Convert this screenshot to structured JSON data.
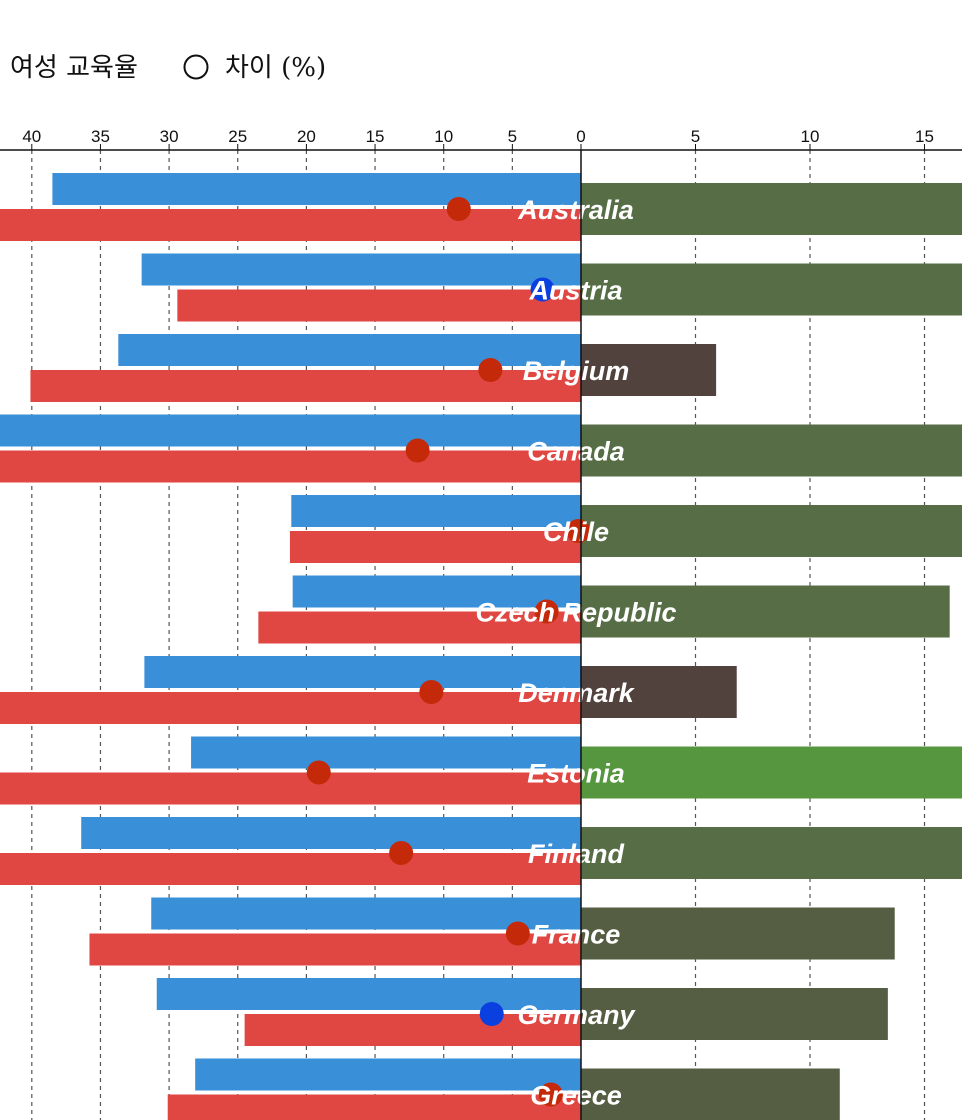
{
  "legend": {
    "series_label": "여성 교육율",
    "marker_label": "차이 (%)"
  },
  "chart_data": {
    "type": "bar",
    "left_axis": {
      "ticks": [
        40,
        35,
        30,
        25,
        20,
        15,
        10,
        5,
        0
      ],
      "direction": "increasing-leftward"
    },
    "right_axis": {
      "ticks": [
        0,
        5,
        10,
        15
      ],
      "direction": "increasing-rightward"
    },
    "grid": "vertical dashed",
    "colors": {
      "blue_bar": "#3a8fd9",
      "red_bar": "#e04742",
      "dot_red": "#c42a0a",
      "dot_blue": "#0a3fe0",
      "green_dark": "#566d45",
      "green_bright": "#55963f",
      "brown": "#51423e",
      "olive": "#555e42"
    },
    "categories": [
      "Australia",
      "Austria",
      "Belgium",
      "Canada",
      "Chile",
      "Czech Republic",
      "Denmark",
      "Estonia",
      "Finland",
      "France",
      "Germany",
      "Greece"
    ],
    "series": [
      {
        "values": [
          38.5,
          32.0,
          33.7,
          44.0,
          21.1,
          21.0,
          31.8,
          28.4,
          36.4,
          31.3,
          30.9,
          28.1
        ]
      },
      {
        "values": [
          44.0,
          29.4,
          40.1,
          44.0,
          21.2,
          23.5,
          44.0,
          44.0,
          44.0,
          35.8,
          24.5,
          30.1
        ]
      }
    ],
    "difference_dots": [
      {
        "value": 8.9,
        "color": "#c42a0a"
      },
      {
        "value": 2.8,
        "color": "#0a3fe0"
      },
      {
        "value": 6.6,
        "color": "#c42a0a"
      },
      {
        "value": 11.9,
        "color": "#c42a0a"
      },
      {
        "value": 0.2,
        "color": "#c42a0a"
      },
      {
        "value": 2.5,
        "color": "#c42a0a"
      },
      {
        "value": 10.9,
        "color": "#c42a0a"
      },
      {
        "value": 19.1,
        "color": "#c42a0a"
      },
      {
        "value": 13.1,
        "color": "#c42a0a"
      },
      {
        "value": 4.6,
        "color": "#c42a0a"
      },
      {
        "value": 6.5,
        "color": "#0a3fe0"
      },
      {
        "value": 2.2,
        "color": "#c42a0a"
      }
    ],
    "right_bars": [
      {
        "value": 17.0,
        "color": "#566d45"
      },
      {
        "value": 17.0,
        "color": "#566d45"
      },
      {
        "value": 5.9,
        "color": "#51423e"
      },
      {
        "value": 17.0,
        "color": "#566d45"
      },
      {
        "value": 17.0,
        "color": "#566d45"
      },
      {
        "value": 16.1,
        "color": "#566d45"
      },
      {
        "value": 6.8,
        "color": "#51423e"
      },
      {
        "value": 17.0,
        "color": "#55963f"
      },
      {
        "value": 17.0,
        "color": "#566d45"
      },
      {
        "value": 13.7,
        "color": "#555e42"
      },
      {
        "value": 13.4,
        "color": "#555e42"
      },
      {
        "value": 11.3,
        "color": "#555e42"
      }
    ]
  }
}
